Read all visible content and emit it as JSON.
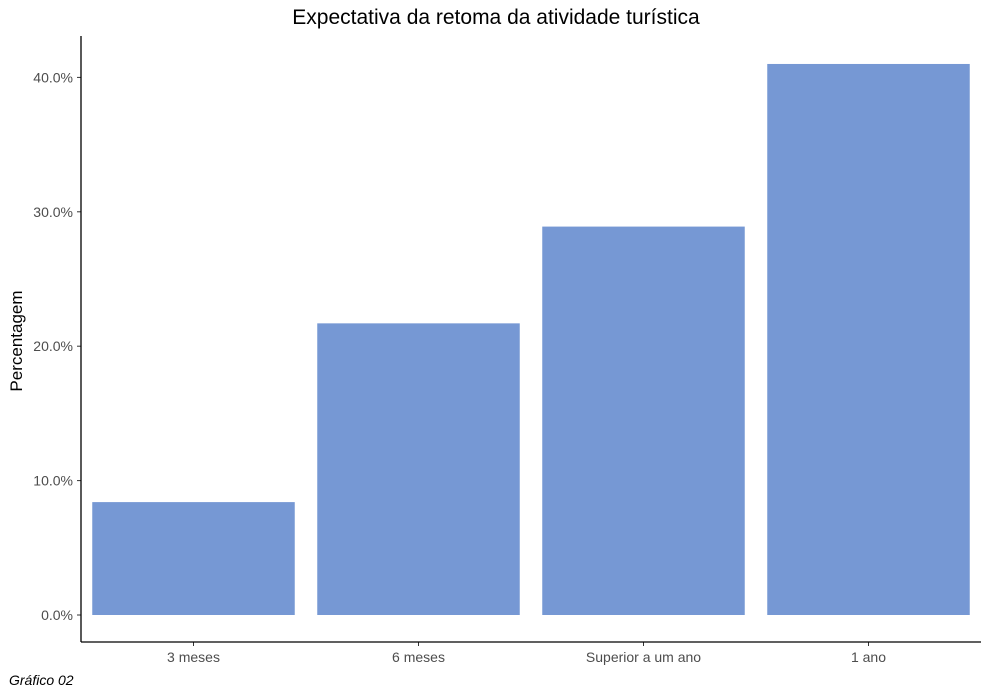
{
  "chart_data": {
    "type": "bar",
    "title": "Expectativa da retoma da atividade turística",
    "xlabel": "",
    "ylabel": "Percentagem",
    "categories": [
      "3 meses",
      "6 meses",
      "Superior a um ano",
      "1 ano"
    ],
    "values": [
      8.4,
      21.7,
      28.9,
      41.0
    ],
    "ylim": [
      0,
      43
    ],
    "yticks": [
      0,
      10,
      20,
      30,
      40
    ],
    "ytick_labels": [
      "0.0%",
      "10.0%",
      "20.0%",
      "30.0%",
      "40.0%"
    ],
    "bar_color": "#7698d4",
    "grid": false,
    "caption": "Gráfico 02"
  }
}
